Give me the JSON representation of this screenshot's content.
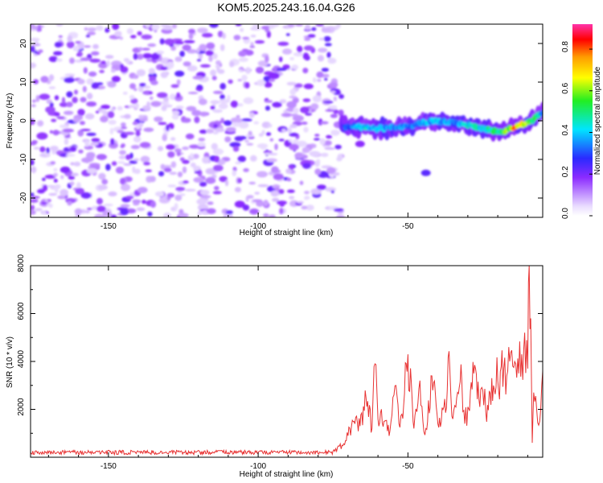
{
  "title": "KOM5.2025.243.16.04.G26",
  "chart_data": [
    {
      "type": "heatmap",
      "name": "spectrogram",
      "xlabel": "Height of straight line (km)",
      "ylabel": "Frequency (Hz)",
      "xlim": [
        -176,
        -5
      ],
      "ylim": [
        -25,
        25
      ],
      "x_ticks": [
        -150,
        -100,
        -50
      ],
      "y_ticks": [
        -20,
        -10,
        0,
        10,
        20
      ],
      "colorbar": {
        "label": "Normalized spectral amplitude",
        "range": [
          0.0,
          0.92
        ],
        "ticks": [
          0.0,
          0.2,
          0.4,
          0.6,
          0.8
        ],
        "tick_labels": [
          "0.0",
          "0.2",
          "0.4",
          "0.6",
          "0.8"
        ]
      },
      "noise_region": {
        "x_range": [
          -176,
          -72
        ],
        "amplitude": [
          0.05,
          0.25
        ]
      },
      "ridge": [
        {
          "x": -72,
          "y": -1.5,
          "amp": 0.3
        },
        {
          "x": -65,
          "y": -1.5,
          "amp": 0.5
        },
        {
          "x": -60,
          "y": -2.0,
          "amp": 0.45
        },
        {
          "x": -50,
          "y": -1.5,
          "amp": 0.4
        },
        {
          "x": -45,
          "y": -0.5,
          "amp": 0.45
        },
        {
          "x": -40,
          "y": 0.0,
          "amp": 0.45
        },
        {
          "x": -35,
          "y": -0.5,
          "amp": 0.4
        },
        {
          "x": -30,
          "y": -1.0,
          "amp": 0.5
        },
        {
          "x": -25,
          "y": -2.0,
          "amp": 0.55
        },
        {
          "x": -20,
          "y": -3.0,
          "amp": 0.6
        },
        {
          "x": -17,
          "y": -2.5,
          "amp": 0.7
        },
        {
          "x": -14,
          "y": -1.5,
          "amp": 0.9
        },
        {
          "x": -10,
          "y": -0.5,
          "amp": 0.7
        },
        {
          "x": -5,
          "y": 2.0,
          "amp": 0.45
        }
      ],
      "blobs": [
        {
          "x": -44,
          "y": -13.5,
          "amp": 0.25
        },
        {
          "x": -66,
          "y": -6.0,
          "amp": 0.2
        }
      ]
    },
    {
      "type": "line",
      "name": "snr",
      "xlabel": "Height of straight line (km)",
      "ylabel": "SNR (10 * v/v)",
      "xlim": [
        -176,
        -5
      ],
      "ylim": [
        0,
        8000
      ],
      "x_ticks": [
        -150,
        -100,
        -50
      ],
      "y_ticks": [
        2000,
        4000,
        6000,
        8000
      ],
      "color": "#e83232",
      "baseline": {
        "x_range": [
          -176,
          -75
        ],
        "value": 200
      },
      "series": {
        "name": "SNR",
        "x": [
          -75,
          -72,
          -70,
          -68,
          -66,
          -64,
          -62,
          -61,
          -60,
          -58,
          -56,
          -55,
          -54,
          -53,
          -52,
          -50,
          -48,
          -47,
          -46,
          -45,
          -44,
          -42,
          -40,
          -38,
          -36,
          -35,
          -34,
          -32,
          -31,
          -30,
          -28,
          -26,
          -25,
          -24,
          -22,
          -20,
          -18,
          -17,
          -16,
          -15,
          -14,
          -13,
          -12,
          -11,
          -10,
          -9.5,
          -9,
          -8.5,
          -8,
          -7,
          -6,
          -5
        ],
        "y": [
          250,
          500,
          900,
          1500,
          1300,
          2500,
          1200,
          3900,
          1600,
          1500,
          1100,
          2500,
          3000,
          1400,
          1800,
          4300,
          1200,
          1900,
          3200,
          1500,
          1200,
          3400,
          1400,
          2100,
          3700,
          1600,
          2100,
          3200,
          1400,
          2100,
          3500,
          2100,
          2800,
          1900,
          3300,
          3200,
          3700,
          3400,
          4000,
          3800,
          3900,
          3500,
          4300,
          5200,
          3700,
          8000,
          5800,
          600,
          2700,
          2000,
          1500,
          3600
        ]
      }
    }
  ]
}
